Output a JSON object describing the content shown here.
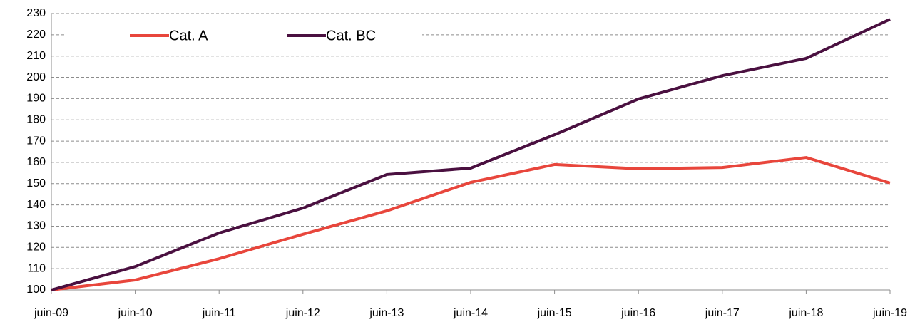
{
  "chart_data": {
    "type": "line",
    "categories": [
      "juin-09",
      "juin-10",
      "juin-11",
      "juin-12",
      "juin-13",
      "juin-14",
      "juin-15",
      "juin-16",
      "juin-17",
      "juin-18",
      "juin-19"
    ],
    "series": [
      {
        "name": "Cat. A",
        "color": "#e8463c",
        "values": [
          100,
          104.7,
          114.7,
          126.2,
          137.2,
          150.6,
          159,
          157,
          157.6,
          162.3,
          150.3
        ]
      },
      {
        "name": "Cat. BC",
        "color": "#4a1040",
        "values": [
          100,
          111,
          126.8,
          138.5,
          154.3,
          157.3,
          173,
          189.8,
          200.8,
          208.9,
          227.3
        ]
      }
    ],
    "ylim": [
      100,
      230
    ],
    "yticks": [
      100,
      110,
      120,
      130,
      140,
      150,
      160,
      170,
      180,
      190,
      200,
      210,
      220,
      230
    ],
    "grid": true,
    "legend": "top-left"
  }
}
